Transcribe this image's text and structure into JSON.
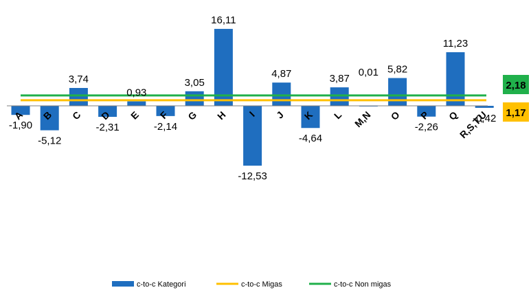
{
  "chart_data": {
    "type": "bar",
    "categories": [
      "A",
      "B",
      "C",
      "D",
      "E",
      "F",
      "G",
      "H",
      "I",
      "J",
      "K",
      "L",
      "M,N",
      "O",
      "P",
      "Q",
      "R,S,T,U"
    ],
    "series": [
      {
        "name": "c-to-c Kategori",
        "color": "#1f6ebf",
        "values": [
          -1.9,
          -5.12,
          3.74,
          -2.31,
          0.93,
          -2.14,
          3.05,
          16.11,
          -12.53,
          4.87,
          -4.64,
          3.87,
          0.01,
          5.82,
          -2.26,
          11.23,
          -0.42
        ],
        "labels": [
          "-1,90",
          "-5,12",
          "3,74",
          "-2,31",
          "0,93",
          "-2,14",
          "3,05",
          "16,11",
          "-12,53",
          "4,87",
          "-4,64",
          "3,87",
          "0,01",
          "5,82",
          "-2,26",
          "11,23",
          "-0,42"
        ]
      },
      {
        "name": "c-to-c Migas",
        "type": "line",
        "color": "#ffc000",
        "value": 1.17,
        "label": "1,17"
      },
      {
        "name": "c-to-c Non migas",
        "type": "line",
        "color": "#20b04b",
        "value": 2.18,
        "label": "2,18"
      }
    ],
    "ylim": [
      -13,
      17
    ],
    "legend_position": "bottom",
    "grid": false
  }
}
